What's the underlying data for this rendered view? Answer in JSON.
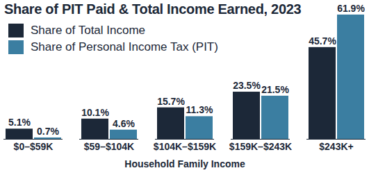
{
  "chart_data": {
    "type": "bar",
    "title": "Share of PIT Paid & Total Income Earned, 2023",
    "x_label": "Household Family Income",
    "categories": [
      "$0–$59K",
      "$59–$104K",
      "$104K–$159K",
      "$159K–$243K",
      "$243K+"
    ],
    "series": [
      {
        "name": "Share of Total Income",
        "color": "#1c2838",
        "values": [
          5.1,
          10.1,
          15.7,
          23.5,
          45.7
        ],
        "value_labels": [
          "5.1%",
          "10.1%",
          "15.7%",
          "23.5%",
          "45.7%"
        ]
      },
      {
        "name": "Share of Personal Income Tax (PIT)",
        "color": "#3b7ea1",
        "values": [
          0.7,
          4.6,
          11.3,
          21.5,
          61.9
        ],
        "value_labels": [
          "0.7%",
          "4.6%",
          "11.3%",
          "21.5%",
          "61.9%"
        ]
      }
    ],
    "ylim": [
      0,
      65
    ],
    "data_labels": true,
    "tick_labels": "x",
    "legend": "top-left"
  }
}
